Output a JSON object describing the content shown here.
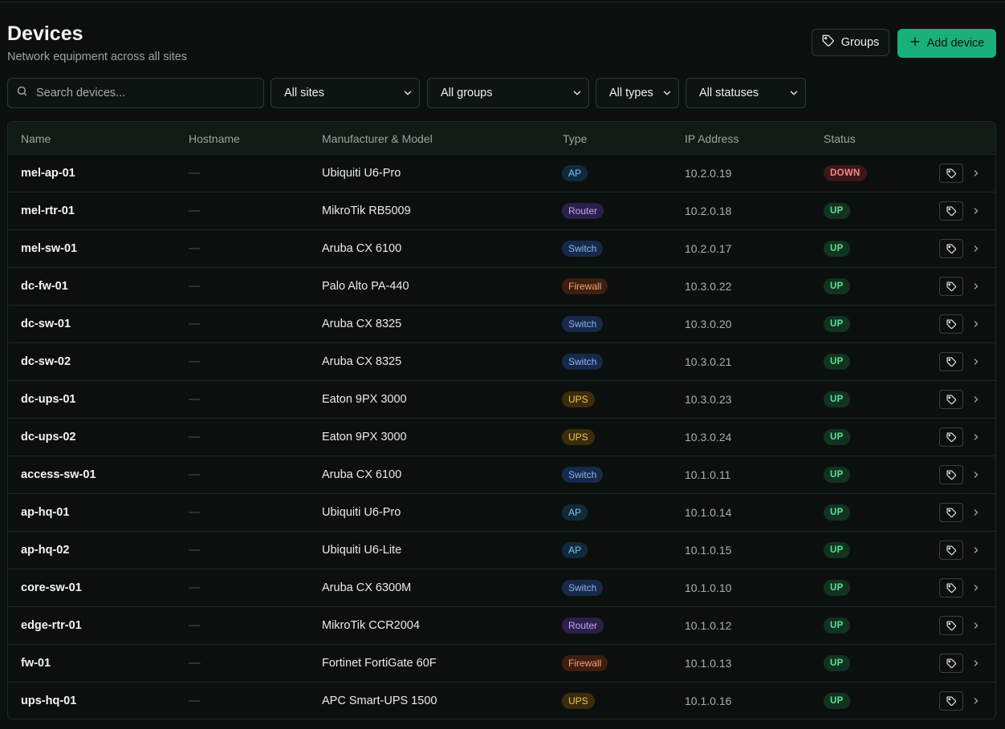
{
  "header": {
    "title": "Devices",
    "subtitle": "Network equipment across all sites",
    "groups_label": "Groups",
    "add_label": "Add device"
  },
  "filters": {
    "search_placeholder": "Search devices...",
    "sites": "All sites",
    "groups": "All groups",
    "types": "All types",
    "statuses": "All statuses"
  },
  "table": {
    "columns": [
      "Name",
      "Hostname",
      "Manufacturer & Model",
      "Type",
      "IP Address",
      "Status"
    ],
    "rows": [
      {
        "name": "mel-ap-01",
        "hostname": "—",
        "model": "Ubiquiti U6-Pro",
        "type": "AP",
        "ip": "10.2.0.19",
        "status": "DOWN"
      },
      {
        "name": "mel-rtr-01",
        "hostname": "—",
        "model": "MikroTik RB5009",
        "type": "Router",
        "ip": "10.2.0.18",
        "status": "UP"
      },
      {
        "name": "mel-sw-01",
        "hostname": "—",
        "model": "Aruba CX 6100",
        "type": "Switch",
        "ip": "10.2.0.17",
        "status": "UP"
      },
      {
        "name": "dc-fw-01",
        "hostname": "—",
        "model": "Palo Alto PA-440",
        "type": "Firewall",
        "ip": "10.3.0.22",
        "status": "UP"
      },
      {
        "name": "dc-sw-01",
        "hostname": "—",
        "model": "Aruba CX 8325",
        "type": "Switch",
        "ip": "10.3.0.20",
        "status": "UP"
      },
      {
        "name": "dc-sw-02",
        "hostname": "—",
        "model": "Aruba CX 8325",
        "type": "Switch",
        "ip": "10.3.0.21",
        "status": "UP"
      },
      {
        "name": "dc-ups-01",
        "hostname": "—",
        "model": "Eaton 9PX 3000",
        "type": "UPS",
        "ip": "10.3.0.23",
        "status": "UP"
      },
      {
        "name": "dc-ups-02",
        "hostname": "—",
        "model": "Eaton 9PX 3000",
        "type": "UPS",
        "ip": "10.3.0.24",
        "status": "UP"
      },
      {
        "name": "access-sw-01",
        "hostname": "—",
        "model": "Aruba CX 6100",
        "type": "Switch",
        "ip": "10.1.0.11",
        "status": "UP"
      },
      {
        "name": "ap-hq-01",
        "hostname": "—",
        "model": "Ubiquiti U6-Pro",
        "type": "AP",
        "ip": "10.1.0.14",
        "status": "UP"
      },
      {
        "name": "ap-hq-02",
        "hostname": "—",
        "model": "Ubiquiti U6-Lite",
        "type": "AP",
        "ip": "10.1.0.15",
        "status": "UP"
      },
      {
        "name": "core-sw-01",
        "hostname": "—",
        "model": "Aruba CX 6300M",
        "type": "Switch",
        "ip": "10.1.0.10",
        "status": "UP"
      },
      {
        "name": "edge-rtr-01",
        "hostname": "—",
        "model": "MikroTik CCR2004",
        "type": "Router",
        "ip": "10.1.0.12",
        "status": "UP"
      },
      {
        "name": "fw-01",
        "hostname": "—",
        "model": "Fortinet FortiGate 60F",
        "type": "Firewall",
        "ip": "10.1.0.13",
        "status": "UP"
      },
      {
        "name": "ups-hq-01",
        "hostname": "—",
        "model": "APC Smart-UPS 1500",
        "type": "UPS",
        "ip": "10.1.0.16",
        "status": "UP"
      }
    ]
  },
  "colors": {
    "background": "#0b100e",
    "accent": "#19b07a",
    "status_up": "#5fe08f",
    "status_down": "#f28a8a"
  }
}
